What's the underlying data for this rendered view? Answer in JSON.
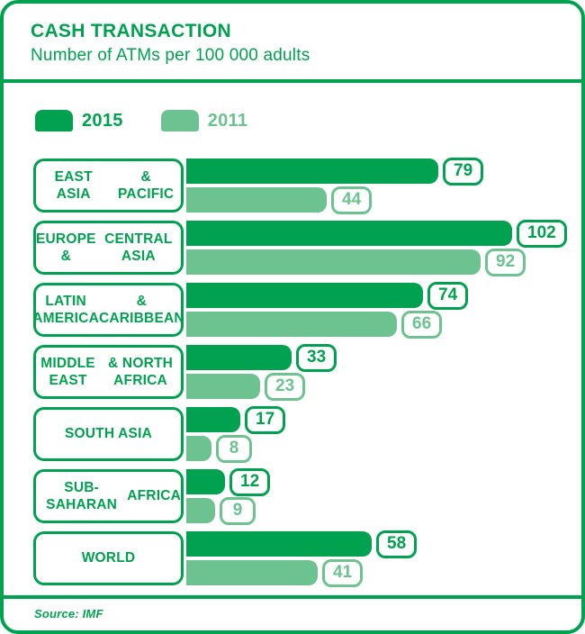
{
  "header": {
    "title": "CASH TRANSACTION",
    "subtitle": "Number of ATMs per 100 000 adults"
  },
  "legend": [
    {
      "label": "2015",
      "color": "#00a14f"
    },
    {
      "label": "2011",
      "color": "#6cc390"
    }
  ],
  "chart_data": {
    "type": "bar",
    "orientation": "horizontal",
    "title": "CASH TRANSACTION",
    "subtitle": "Number of ATMs per 100 000 adults",
    "categories": [
      "EAST ASIA\n& PACIFIC",
      "EUROPE &\nCENTRAL ASIA",
      "LATIN AMERICA\n& CARIBBEAN",
      "MIDDLE EAST\n& NORTH AFRICA",
      "SOUTH ASIA",
      "SUB-SAHARAN\nAFRICA",
      "WORLD"
    ],
    "series": [
      {
        "name": "2015",
        "color": "#00a14f",
        "values": [
          79,
          102,
          74,
          33,
          17,
          12,
          58
        ]
      },
      {
        "name": "2011",
        "color": "#6cc390",
        "values": [
          44,
          92,
          66,
          23,
          8,
          9,
          41
        ]
      }
    ],
    "value_labels": true,
    "grid": false,
    "legend_position": "top-left",
    "xlim": [
      0,
      110
    ]
  },
  "footer": {
    "source": "Source: IMF"
  },
  "colors": {
    "accent_dark": "#00a14f",
    "accent_light": "#6cc390",
    "background": "#ffffff"
  }
}
